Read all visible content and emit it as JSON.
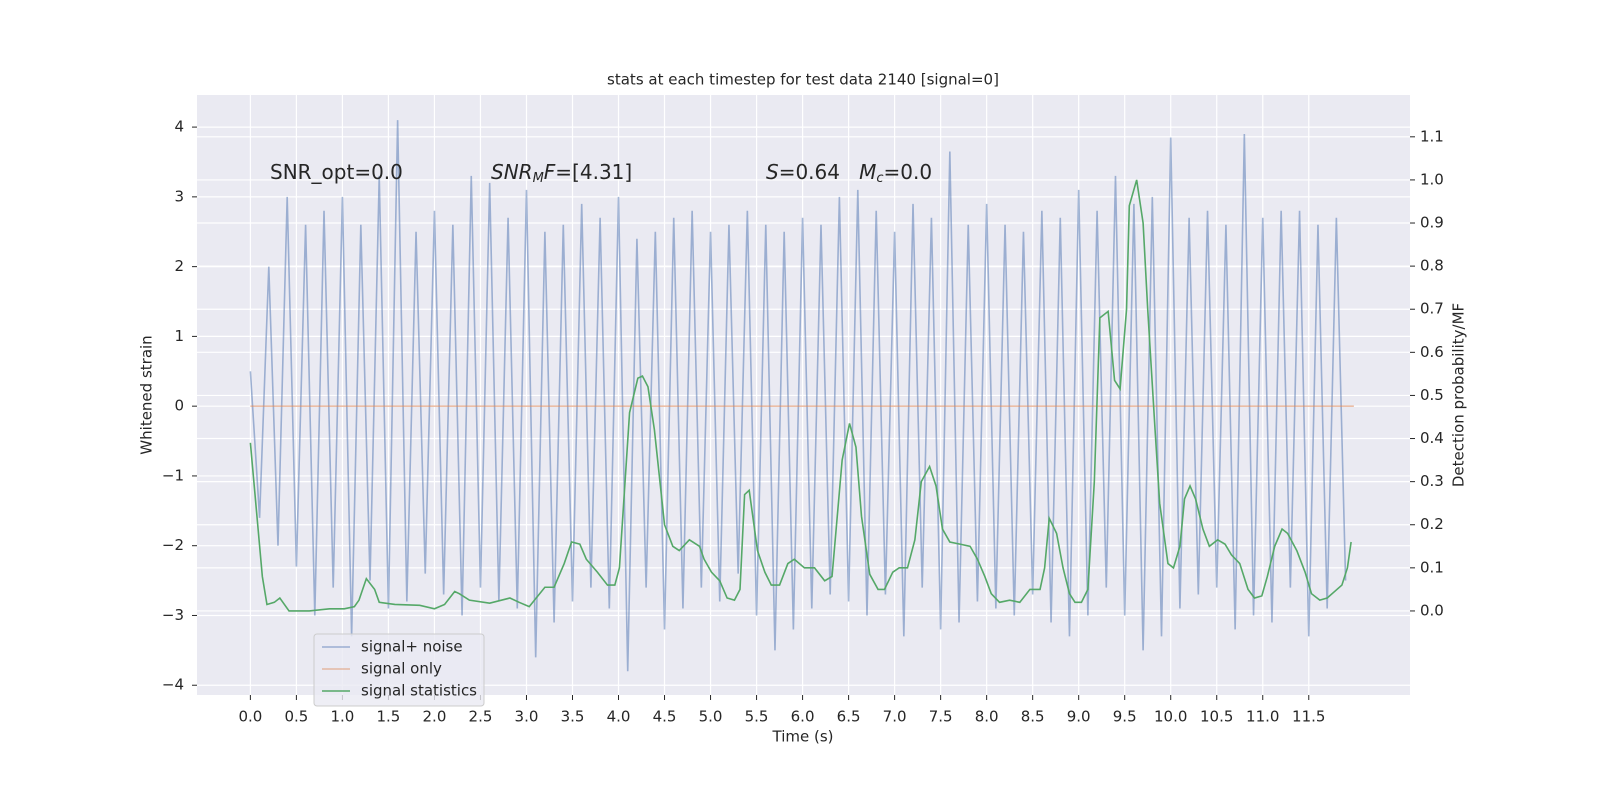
{
  "chart_data": {
    "type": "line",
    "title": "stats at each timestep for test data 2140 [signal=0]",
    "x_label": "Time (s)",
    "y_label": "Whitened strain",
    "y2_label": "Detection probability/MF",
    "xlim": [
      -0.58,
      12.6
    ],
    "ylim": [
      -4.14,
      4.46
    ],
    "y2lim": [
      -0.195,
      1.197
    ],
    "xticks": [
      {
        "value": 0,
        "label": "0.0"
      },
      0.5,
      {
        "value": 1,
        "label": "1.0"
      },
      1.5,
      {
        "value": 2,
        "label": "2.0"
      },
      2.5,
      {
        "value": 3,
        "label": "3.0"
      },
      3.5,
      {
        "value": 4,
        "label": "4.0"
      },
      4.5,
      {
        "value": 5,
        "label": "5.0"
      },
      5.5,
      {
        "value": 6,
        "label": "6.0"
      },
      6.5,
      {
        "value": 7,
        "label": "7.0"
      },
      7.5,
      {
        "value": 8,
        "label": "8.0"
      },
      8.5,
      {
        "value": 9,
        "label": "9.0"
      },
      9.5,
      {
        "value": 10,
        "label": "10.0"
      },
      10.5,
      {
        "value": 11,
        "label": "11.0"
      },
      11.5
    ],
    "yticks": [
      {
        "value": -4,
        "label": "−4"
      },
      {
        "value": -3,
        "label": "−3"
      },
      {
        "value": -2,
        "label": "−2"
      },
      {
        "value": -1,
        "label": "−1"
      },
      0,
      1,
      2,
      3,
      4
    ],
    "y2ticks": [
      {
        "value": 0,
        "label": "0.0"
      },
      0.1,
      0.2,
      0.3,
      0.4,
      0.5,
      0.6,
      0.7,
      0.8,
      0.9,
      {
        "value": 1,
        "label": "1.0"
      },
      1.1
    ],
    "grid": true,
    "legend": "lower left",
    "annotations": [
      {
        "parts": [
          "SNR_opt=0.0"
        ]
      },
      {
        "parts": [
          "SNR",
          "M",
          "F",
          "=[4.31]"
        ]
      },
      {
        "parts": [
          "S",
          "=0.64   ",
          "M",
          "c",
          "=0.0"
        ]
      }
    ],
    "series": [
      {
        "name": "signal+ noise",
        "color": "#4c72b0",
        "axis": "y",
        "x": [
          0.0,
          0.1,
          0.2,
          0.3,
          0.4,
          0.5,
          0.6,
          0.7,
          0.8,
          0.9,
          1.0,
          1.1,
          1.2,
          1.3,
          1.4,
          1.5,
          1.6,
          1.7,
          1.8,
          1.9,
          2.0,
          2.1,
          2.2,
          2.3,
          2.4,
          2.5,
          2.6,
          2.7,
          2.8,
          2.9,
          3.0,
          3.1,
          3.2,
          3.3,
          3.4,
          3.5,
          3.6,
          3.7,
          3.8,
          3.9,
          4.0,
          4.1,
          4.2,
          4.3,
          4.4,
          4.5,
          4.6,
          4.7,
          4.8,
          4.9,
          5.0,
          5.1,
          5.2,
          5.3,
          5.4,
          5.5,
          5.6,
          5.7,
          5.8,
          5.9,
          6.0,
          6.1,
          6.2,
          6.3,
          6.4,
          6.5,
          6.6,
          6.7,
          6.8,
          6.9,
          7.0,
          7.1,
          7.2,
          7.3,
          7.4,
          7.5,
          7.6,
          7.7,
          7.8,
          7.9,
          8.0,
          8.1,
          8.2,
          8.3,
          8.4,
          8.5,
          8.6,
          8.7,
          8.8,
          8.9,
          9.0,
          9.1,
          9.2,
          9.3,
          9.4,
          9.5,
          9.6,
          9.7,
          9.8,
          9.9,
          10.0,
          10.1,
          10.2,
          10.3,
          10.4,
          10.5,
          10.6,
          10.7,
          10.8,
          10.9,
          11.0,
          11.1,
          11.2,
          11.3,
          11.4,
          11.5,
          11.6,
          11.7,
          11.8,
          11.9
        ],
        "values": [
          0.5,
          -1.6,
          2.0,
          -2.0,
          3.0,
          -2.3,
          2.6,
          -3.0,
          2.8,
          -2.6,
          3.0,
          -3.3,
          2.6,
          -2.5,
          3.3,
          -2.9,
          4.1,
          -2.8,
          2.5,
          -2.4,
          2.8,
          -2.7,
          2.6,
          -3.0,
          3.3,
          -2.6,
          3.2,
          -2.8,
          2.7,
          -2.9,
          3.1,
          -3.6,
          2.5,
          -3.1,
          2.6,
          -2.8,
          2.9,
          -2.6,
          2.7,
          -2.9,
          3.0,
          -3.8,
          2.4,
          -2.6,
          2.5,
          -3.2,
          2.7,
          -2.9,
          2.8,
          -2.6,
          2.5,
          -2.8,
          2.6,
          -2.4,
          2.8,
          -3.0,
          2.6,
          -3.5,
          2.5,
          -3.2,
          2.7,
          -2.9,
          2.6,
          -2.7,
          3.0,
          -2.8,
          3.1,
          -3.0,
          2.8,
          -2.7,
          2.5,
          -3.3,
          2.9,
          -2.6,
          2.7,
          -3.2,
          3.65,
          -3.1,
          2.6,
          -2.8,
          2.9,
          -2.9,
          2.6,
          -3.0,
          2.5,
          -2.7,
          2.8,
          -3.1,
          2.7,
          -3.3,
          3.1,
          -3.0,
          2.8,
          -2.6,
          3.3,
          -3.0,
          2.9,
          -3.5,
          3.0,
          -3.3,
          3.85,
          -2.9,
          2.7,
          -2.7,
          2.8,
          -2.6,
          2.6,
          -3.2,
          3.9,
          -3.0,
          2.7,
          -3.1,
          2.8,
          -2.6,
          2.8,
          -3.3,
          2.6,
          -2.9,
          2.7,
          -2.5
        ]
      },
      {
        "name": "signal only",
        "color": "#dd8452",
        "axis": "y",
        "x": [
          0.0,
          11.99
        ],
        "values": [
          0,
          0
        ]
      },
      {
        "name": "signal statistics",
        "color": "#55a868",
        "axis": "y2",
        "x": [
          0.0,
          0.13,
          0.18,
          0.26,
          0.32,
          0.42,
          0.64,
          0.86,
          1.02,
          1.13,
          1.18,
          1.26,
          1.35,
          1.4,
          1.57,
          1.84,
          2.0,
          2.11,
          2.22,
          2.27,
          2.38,
          2.6,
          2.82,
          2.92,
          3.03,
          3.2,
          3.3,
          3.41,
          3.49,
          3.58,
          3.65,
          3.77,
          3.88,
          3.96,
          4.01,
          4.12,
          4.21,
          4.26,
          4.32,
          4.39,
          4.5,
          4.59,
          4.66,
          4.77,
          4.88,
          4.93,
          5.01,
          5.1,
          5.18,
          5.26,
          5.32,
          5.37,
          5.42,
          5.51,
          5.59,
          5.66,
          5.75,
          5.84,
          5.91,
          6.02,
          6.13,
          6.24,
          6.32,
          6.43,
          6.51,
          6.58,
          6.64,
          6.73,
          6.82,
          6.89,
          6.98,
          7.05,
          7.14,
          7.22,
          7.29,
          7.38,
          7.45,
          7.52,
          7.6,
          7.71,
          7.82,
          7.9,
          7.98,
          8.05,
          8.14,
          8.25,
          8.36,
          8.47,
          8.58,
          8.63,
          8.68,
          8.76,
          8.83,
          8.9,
          8.96,
          9.03,
          9.1,
          9.17,
          9.23,
          9.32,
          9.39,
          9.45,
          9.52,
          9.55,
          9.63,
          9.7,
          9.75,
          9.83,
          9.88,
          9.97,
          10.03,
          10.1,
          10.15,
          10.21,
          10.27,
          10.35,
          10.42,
          10.51,
          10.59,
          10.66,
          10.75,
          10.84,
          10.91,
          10.99,
          11.05,
          11.13,
          11.21,
          11.27,
          11.37,
          11.46,
          11.53,
          11.62,
          11.7,
          11.78,
          11.86,
          11.92,
          11.96
        ],
        "values": [
          0.39,
          0.08,
          0.015,
          0.02,
          0.03,
          0.0,
          0.0,
          0.005,
          0.005,
          0.01,
          0.025,
          0.075,
          0.05,
          0.02,
          0.015,
          0.013,
          0.005,
          0.015,
          0.045,
          0.04,
          0.025,
          0.018,
          0.03,
          0.02,
          0.01,
          0.055,
          0.055,
          0.11,
          0.16,
          0.155,
          0.12,
          0.09,
          0.06,
          0.06,
          0.1,
          0.46,
          0.54,
          0.545,
          0.52,
          0.42,
          0.2,
          0.15,
          0.14,
          0.165,
          0.15,
          0.12,
          0.09,
          0.07,
          0.03,
          0.025,
          0.05,
          0.27,
          0.28,
          0.14,
          0.09,
          0.06,
          0.06,
          0.11,
          0.12,
          0.1,
          0.1,
          0.07,
          0.08,
          0.35,
          0.435,
          0.38,
          0.22,
          0.085,
          0.05,
          0.05,
          0.09,
          0.1,
          0.1,
          0.165,
          0.3,
          0.335,
          0.29,
          0.19,
          0.16,
          0.155,
          0.15,
          0.12,
          0.08,
          0.04,
          0.02,
          0.025,
          0.02,
          0.05,
          0.05,
          0.1,
          0.215,
          0.18,
          0.1,
          0.04,
          0.02,
          0.02,
          0.05,
          0.3,
          0.68,
          0.695,
          0.535,
          0.515,
          0.7,
          0.94,
          1.0,
          0.9,
          0.7,
          0.42,
          0.25,
          0.11,
          0.1,
          0.15,
          0.26,
          0.29,
          0.26,
          0.19,
          0.15,
          0.165,
          0.155,
          0.13,
          0.11,
          0.05,
          0.03,
          0.035,
          0.08,
          0.15,
          0.19,
          0.18,
          0.14,
          0.09,
          0.04,
          0.025,
          0.03,
          0.045,
          0.06,
          0.1,
          0.16
        ]
      }
    ]
  }
}
